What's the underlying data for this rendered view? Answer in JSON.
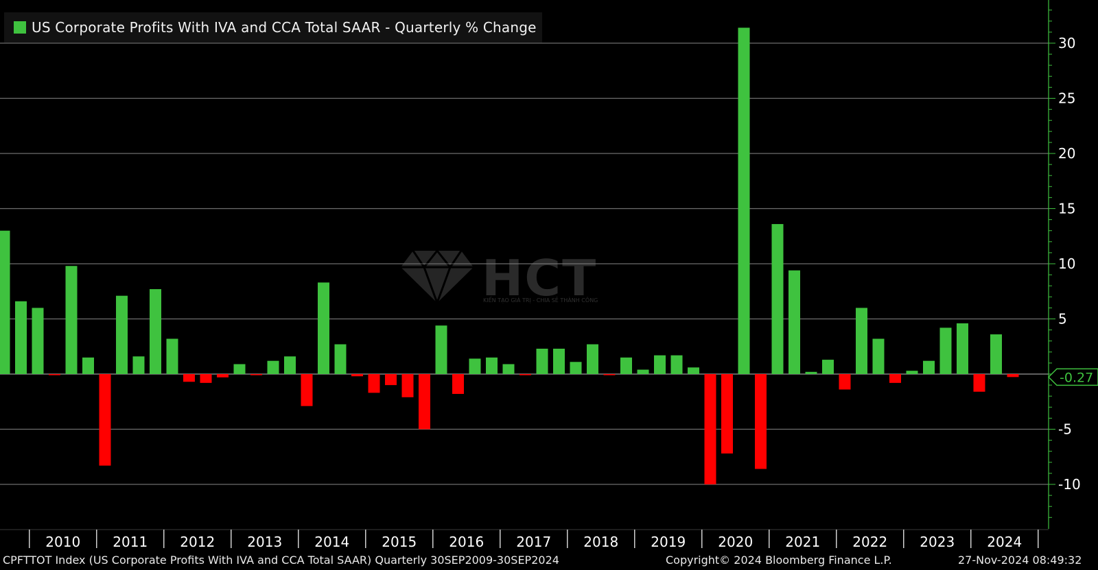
{
  "chart_data": {
    "type": "bar",
    "title": "US Corporate Profits With IVA and CCA Total SAAR - Quarterly % Change",
    "legend": "US Corporate Profits With IVA and CCA Total SAAR - Quarterly % Change",
    "xlabel": "",
    "ylabel": "",
    "ylim": [
      -14,
      34
    ],
    "yticks": [
      -10,
      -5,
      0,
      5,
      10,
      15,
      20,
      25,
      30
    ],
    "ytick_labels": [
      "-10",
      "-5",
      "",
      "5",
      "10",
      "15",
      "20",
      "25",
      "30"
    ],
    "last_value_label": "-0.27",
    "year_labels": [
      "2010",
      "2011",
      "2012",
      "2013",
      "2014",
      "2015",
      "2016",
      "2017",
      "2018",
      "2019",
      "2020",
      "2021",
      "2022",
      "2023",
      "2024"
    ],
    "quarters": [
      "Q3 2009",
      "Q4 2009",
      "Q1 2010",
      "Q2 2010",
      "Q3 2010",
      "Q4 2010",
      "Q1 2011",
      "Q2 2011",
      "Q3 2011",
      "Q4 2011",
      "Q1 2012",
      "Q2 2012",
      "Q3 2012",
      "Q4 2012",
      "Q1 2013",
      "Q2 2013",
      "Q3 2013",
      "Q4 2013",
      "Q1 2014",
      "Q2 2014",
      "Q3 2014",
      "Q4 2014",
      "Q1 2015",
      "Q2 2015",
      "Q3 2015",
      "Q4 2015",
      "Q1 2016",
      "Q2 2016",
      "Q3 2016",
      "Q4 2016",
      "Q1 2017",
      "Q2 2017",
      "Q3 2017",
      "Q4 2017",
      "Q1 2018",
      "Q2 2018",
      "Q3 2018",
      "Q4 2018",
      "Q1 2019",
      "Q2 2019",
      "Q3 2019",
      "Q4 2019",
      "Q1 2020",
      "Q2 2020",
      "Q3 2020",
      "Q4 2020",
      "Q1 2021",
      "Q2 2021",
      "Q3 2021",
      "Q4 2021",
      "Q1 2022",
      "Q2 2022",
      "Q3 2022",
      "Q4 2022",
      "Q1 2023",
      "Q2 2023",
      "Q3 2023",
      "Q4 2023",
      "Q1 2024",
      "Q2 2024",
      "Q3 2024"
    ],
    "values": [
      13.0,
      6.6,
      6.0,
      -0.1,
      9.8,
      1.5,
      -8.3,
      7.1,
      1.6,
      7.7,
      3.2,
      -0.7,
      -0.8,
      -0.3,
      0.9,
      -0.1,
      1.2,
      1.6,
      -2.9,
      8.3,
      2.7,
      -0.2,
      -1.7,
      -1.0,
      -2.1,
      -5.0,
      4.4,
      -1.8,
      1.4,
      1.5,
      0.9,
      -0.1,
      2.3,
      2.3,
      1.1,
      2.7,
      -0.1,
      1.5,
      0.4,
      1.7,
      1.7,
      0.6,
      -10.0,
      -7.2,
      31.4,
      -8.6,
      13.6,
      9.4,
      0.2,
      1.3,
      -1.4,
      6.0,
      3.2,
      -0.8,
      0.3,
      1.2,
      4.2,
      4.6,
      -1.6,
      3.6,
      -0.27
    ],
    "colors": {
      "positive": "#3fc23f",
      "negative": "#ff0000",
      "grid": "#6e6e6e",
      "axis": "#3fc23f",
      "last_value": "#3fc23f"
    }
  },
  "footer": {
    "source": "CPFTTOT Index (US Corporate Profits With IVA and CCA Total SAAR)  Quarterly 30SEP2009-30SEP2024",
    "copyright": "Copyright© 2024 Bloomberg Finance L.P.",
    "timestamp": "27-Nov-2024 08:49:32"
  },
  "watermark": {
    "text": "HCT",
    "subtext": "KIẾN TẠO GIÁ TRỊ - CHIA SẺ THÀNH CÔNG"
  }
}
